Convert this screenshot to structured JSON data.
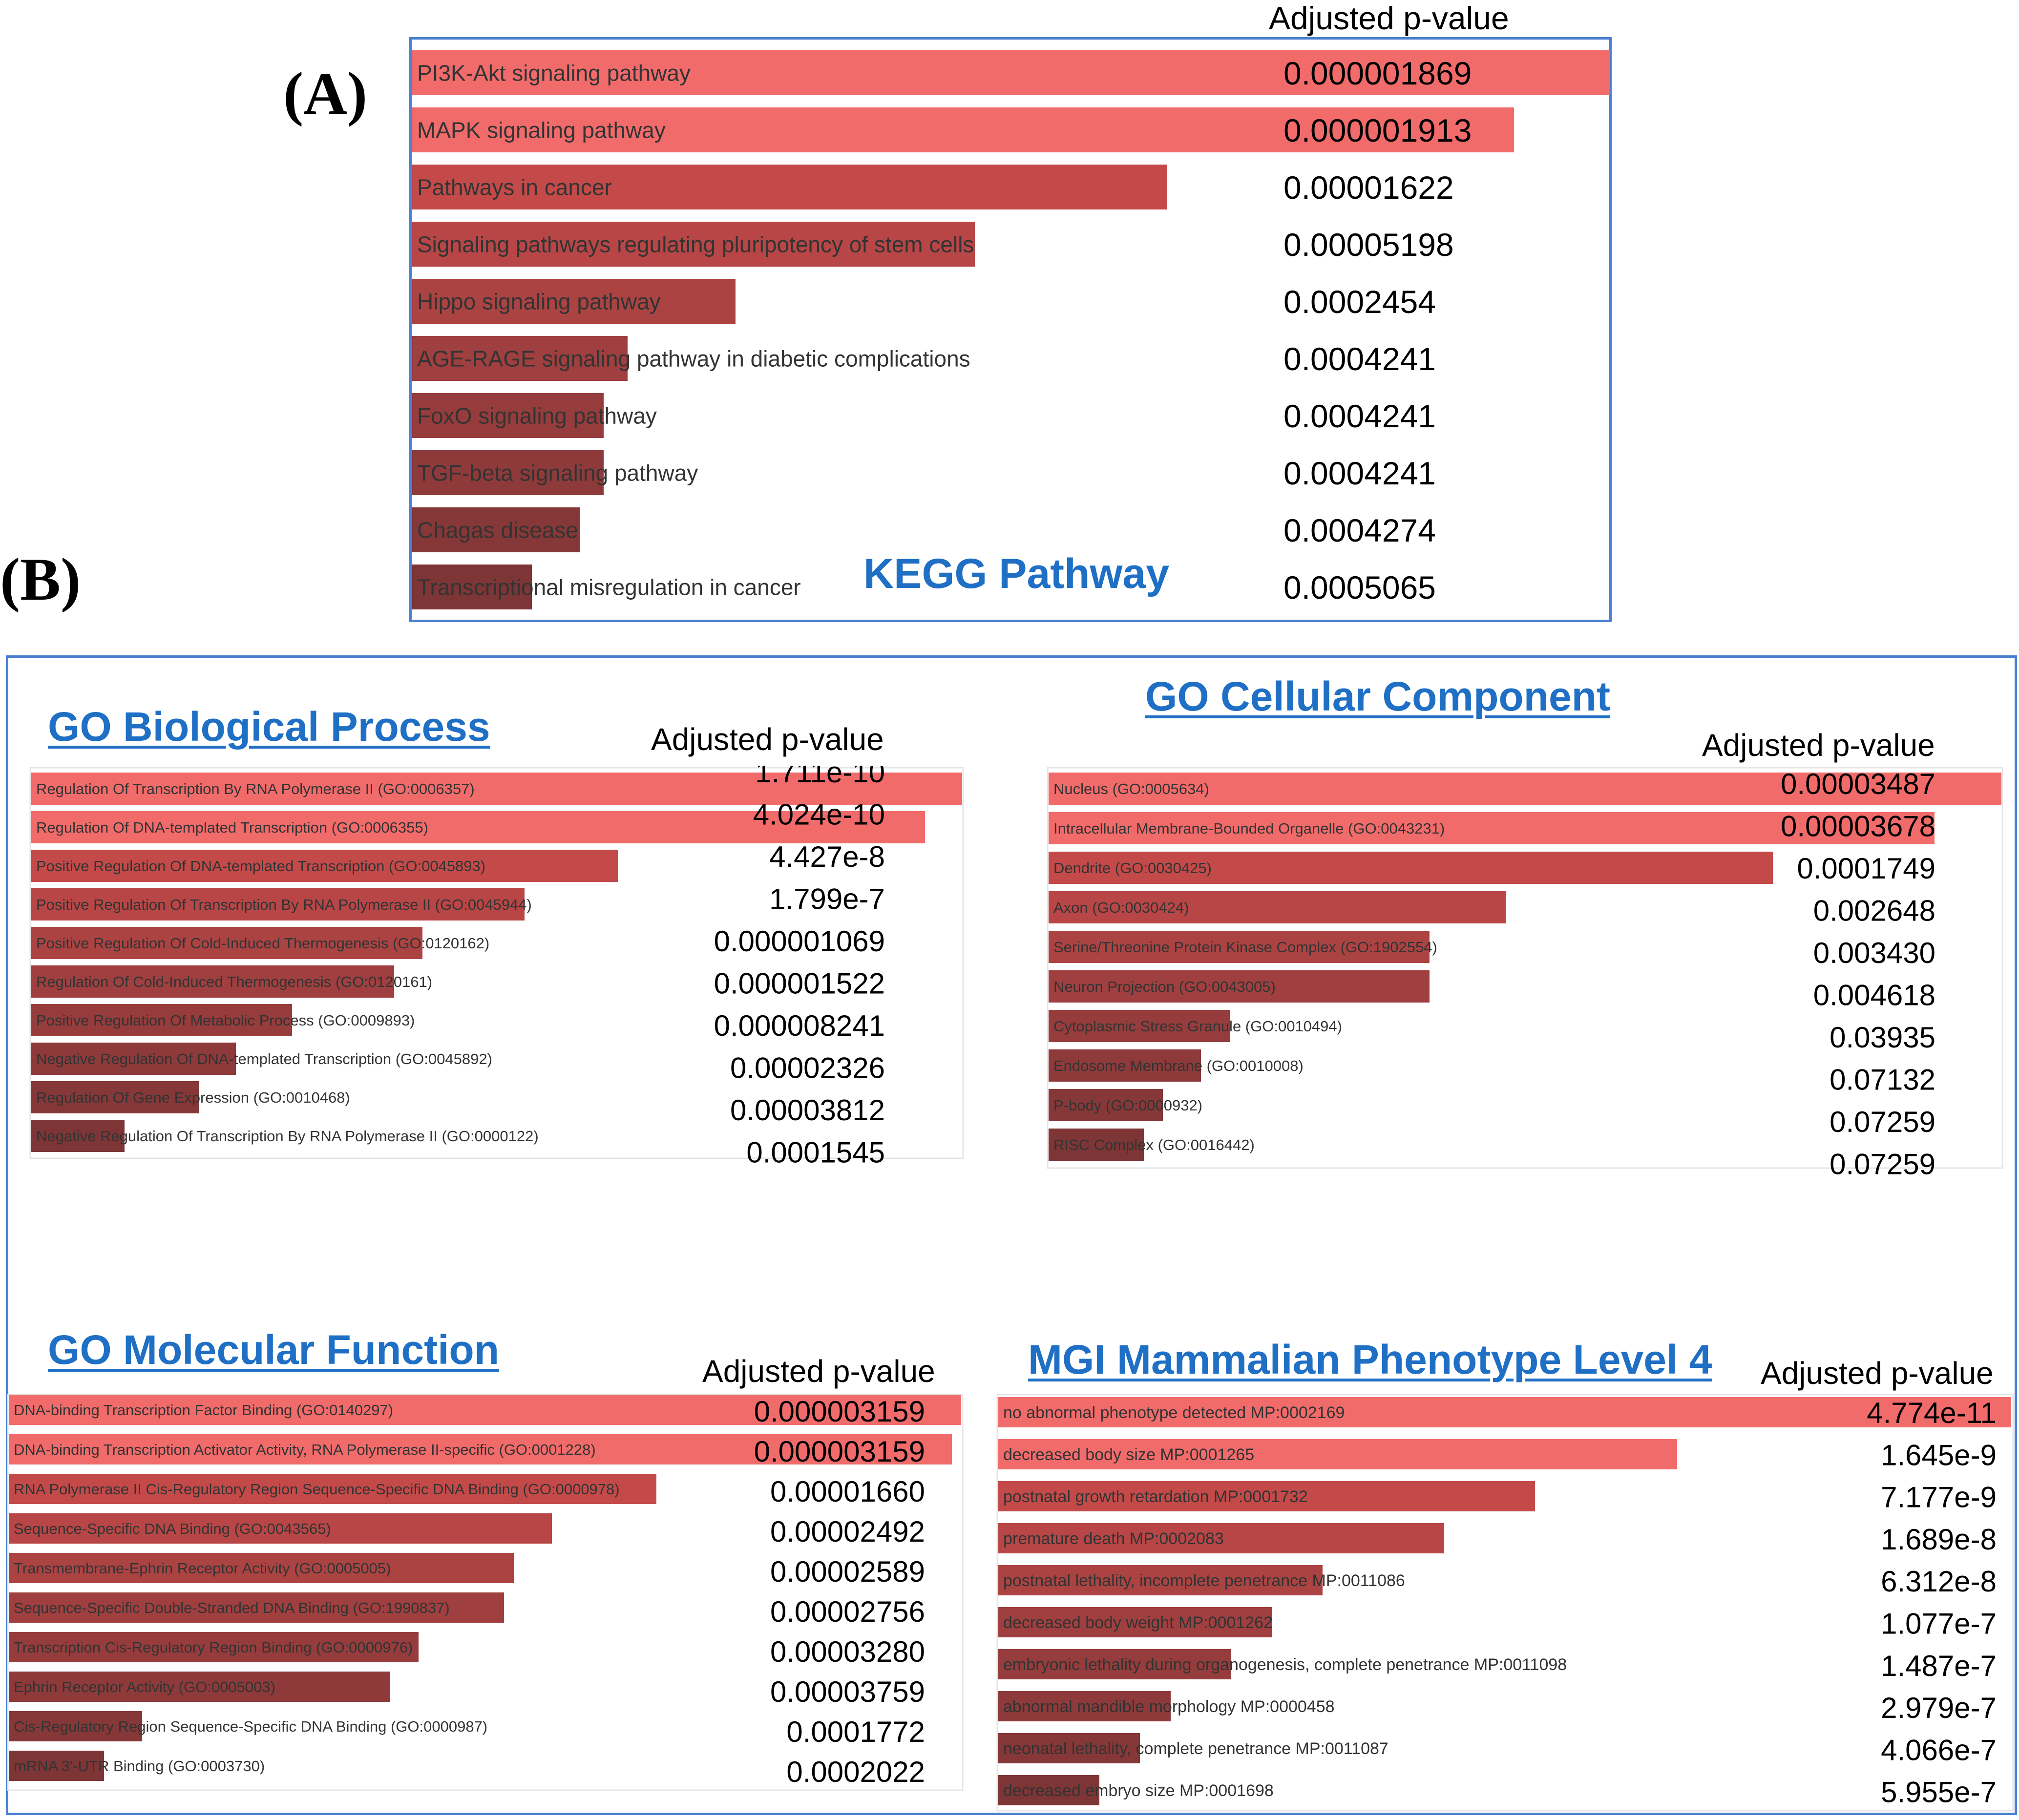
{
  "panels": {
    "a_label": "(A)",
    "b_label": "(B)"
  },
  "colors": {
    "bar_light": "#f26b6b",
    "bar_mid": "#c44a4a",
    "bar_dark": "#7e3535",
    "title_blue": "#1f6fc5",
    "border_blue": "#4a7fd0"
  },
  "chart_data": [
    {
      "type": "bar",
      "orientation": "horizontal",
      "title": "KEGG Pathway",
      "value_header": "Adjusted p-value",
      "categories": [
        "PI3K-Akt signaling pathway",
        "MAPK signaling pathway",
        "Pathways in cancer",
        "Signaling pathways regulating pluripotency of stem cells",
        "Hippo signaling pathway",
        "AGE-RAGE signaling pathway in diabetic complications",
        "FoxO signaling pathway",
        "TGF-beta signaling pathway",
        "Chagas disease",
        "Transcriptional misregulation in cancer"
      ],
      "p_values": [
        "0.000001869",
        "0.000001913",
        "0.00001622",
        "0.00005198",
        "0.0002454",
        "0.0004241",
        "0.0004241",
        "0.0004241",
        "0.0004274",
        "0.0005065"
      ],
      "bar_scale": [
        1.0,
        0.92,
        0.63,
        0.47,
        0.27,
        0.18,
        0.16,
        0.16,
        0.14,
        0.1
      ]
    },
    {
      "type": "bar",
      "orientation": "horizontal",
      "title": "GO Biological Process",
      "value_header": "Adjusted p-value",
      "categories": [
        "Regulation Of Transcription By RNA Polymerase II (GO:0006357)",
        "Regulation Of DNA-templated Transcription (GO:0006355)",
        "Positive Regulation Of DNA-templated Transcription (GO:0045893)",
        "Positive Regulation Of Transcription By RNA Polymerase II (GO:0045944)",
        "Positive Regulation Of Cold-Induced Thermogenesis (GO:0120162)",
        "Regulation Of Cold-Induced Thermogenesis (GO:0120161)",
        "Positive Regulation Of Metabolic Process (GO:0009893)",
        "Negative Regulation Of DNA-templated Transcription (GO:0045892)",
        "Regulation Of Gene Expression (GO:0010468)",
        "Negative Regulation Of Transcription By RNA Polymerase II (GO:0000122)"
      ],
      "p_values": [
        "1.711e-10",
        "4.024e-10",
        "4.427e-8",
        "1.799e-7",
        "0.000001069",
        "0.000001522",
        "0.000008241",
        "0.00002326",
        "0.00003812",
        "0.0001545"
      ],
      "bar_scale": [
        1.0,
        0.96,
        0.63,
        0.53,
        0.42,
        0.39,
        0.28,
        0.22,
        0.18,
        0.1
      ]
    },
    {
      "type": "bar",
      "orientation": "horizontal",
      "title": "GO Cellular Component",
      "value_header": "Adjusted p-value",
      "categories": [
        "Nucleus (GO:0005634)",
        "Intracellular Membrane-Bounded Organelle (GO:0043231)",
        "Dendrite (GO:0030425)",
        "Axon (GO:0030424)",
        "Serine/Threonine Protein Kinase Complex (GO:1902554)",
        "Neuron Projection (GO:0043005)",
        "Cytoplasmic Stress Granule (GO:0010494)",
        "Endosome Membrane (GO:0010008)",
        "P-body (GO:0000932)",
        "RISC Complex (GO:0016442)"
      ],
      "p_values": [
        "0.00003487",
        "0.00003678",
        "0.0001749",
        "0.002648",
        "0.003430",
        "0.004618",
        "0.03935",
        "0.07132",
        "0.07259",
        "0.07259"
      ],
      "bar_scale": [
        1.0,
        0.93,
        0.76,
        0.48,
        0.4,
        0.4,
        0.19,
        0.16,
        0.12,
        0.1
      ]
    },
    {
      "type": "bar",
      "orientation": "horizontal",
      "title": "GO Molecular Function",
      "value_header": "Adjusted p-value",
      "categories": [
        "DNA-binding Transcription Factor Binding (GO:0140297)",
        "DNA-binding Transcription Activator Activity, RNA Polymerase II-specific (GO:0001228)",
        "RNA Polymerase II Cis-Regulatory Region Sequence-Specific DNA Binding (GO:0000978)",
        "Sequence-Specific DNA Binding (GO:0043565)",
        "Transmembrane-Ephrin Receptor Activity (GO:0005005)",
        "Sequence-Specific Double-Stranded DNA Binding (GO:1990837)",
        "Transcription Cis-Regulatory Region Binding (GO:0000976)",
        "Ephrin Receptor Activity (GO:0005003)",
        "Cis-Regulatory Region Sequence-Specific DNA Binding (GO:0000987)",
        "mRNA 3'-UTR Binding (GO:0003730)"
      ],
      "p_values": [
        "0.000003159",
        "0.000003159",
        "0.00001660",
        "0.00002492",
        "0.00002589",
        "0.00002756",
        "0.00003280",
        "0.00003759",
        "0.0001772",
        "0.0002022"
      ],
      "bar_scale": [
        1.0,
        0.99,
        0.68,
        0.57,
        0.53,
        0.52,
        0.43,
        0.4,
        0.14,
        0.1
      ]
    },
    {
      "type": "bar",
      "orientation": "horizontal",
      "title": "MGI Mammalian Phenotype Level 4",
      "value_header": "Adjusted p-value",
      "categories": [
        "no abnormal phenotype detected MP:0002169",
        "decreased body size MP:0001265",
        "postnatal growth retardation MP:0001732",
        "premature death MP:0002083",
        "postnatal lethality, incomplete penetrance MP:0011086",
        "decreased body weight MP:0001262",
        "embryonic lethality during organogenesis, complete penetrance MP:0011098",
        "abnormal mandible morphology MP:0000458",
        "neonatal lethality, complete penetrance MP:0011087",
        "decreased embryo size MP:0001698"
      ],
      "p_values": [
        "4.774e-11",
        "1.645e-9",
        "7.177e-9",
        "1.689e-8",
        "6.312e-8",
        "1.077e-7",
        "1.487e-7",
        "2.979e-7",
        "4.066e-7",
        "5.955e-7"
      ],
      "bar_scale": [
        1.0,
        0.67,
        0.53,
        0.44,
        0.32,
        0.27,
        0.23,
        0.17,
        0.14,
        0.1
      ]
    }
  ]
}
